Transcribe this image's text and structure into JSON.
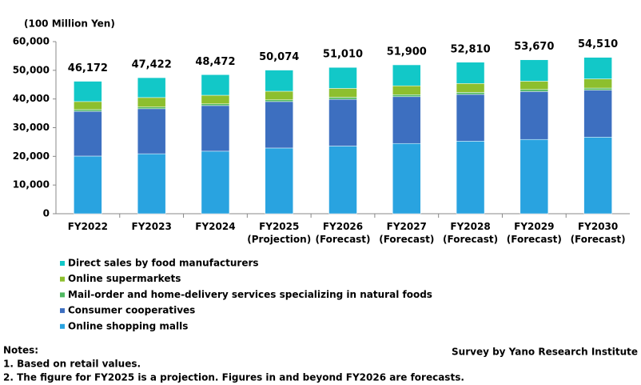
{
  "chart_data": {
    "type": "stacked_bar",
    "y_axis_label": "(100 Million Yen)",
    "categories": [
      "FY2022",
      "FY2023",
      "FY2024",
      "FY2025 (Projection)",
      "FY2026 (Forecast)",
      "FY2027 (Forecast)",
      "FY2028 (Forecast)",
      "FY2029 (Forecast)",
      "FY2030 (Forecast)"
    ],
    "series": [
      {
        "name": "Online shopping malls",
        "color": "#29a3e0",
        "values": [
          20100,
          20900,
          21800,
          22900,
          23600,
          24500,
          25300,
          25900,
          26700
        ]
      },
      {
        "name": "Consumer cooperatives",
        "color": "#3d6fc0",
        "values": [
          15600,
          15700,
          15900,
          16200,
          16300,
          16300,
          16300,
          16700,
          16400
        ]
      },
      {
        "name": "Mail-order and home-delivery services specializing in natural foods",
        "color": "#4fb860",
        "values": [
          600,
          600,
          600,
          600,
          700,
          700,
          700,
          700,
          700
        ]
      },
      {
        "name": "Online supermarkets",
        "color": "#8dbf2e",
        "values": [
          2800,
          3300,
          3000,
          3000,
          3100,
          3100,
          3100,
          2900,
          3200
        ]
      },
      {
        "name": "Direct sales by food manufacturers",
        "color": "#12c8c8",
        "values": [
          7072,
          6922,
          7172,
          7374,
          7310,
          7300,
          7410,
          7470,
          7510
        ]
      }
    ],
    "totals": [
      46172,
      47422,
      48472,
      50074,
      51010,
      51900,
      52810,
      53670,
      54510
    ],
    "total_labels": [
      "46,172",
      "47,422",
      "48,472",
      "50,074",
      "51,010",
      "51,900",
      "52,810",
      "53,670",
      "54,510"
    ],
    "ylim": [
      0,
      60000
    ],
    "yticks": [
      0,
      {
        "value": 10000,
        "label": "10,000"
      },
      {
        "value": 20000,
        "label": "20,000"
      },
      {
        "value": 30000,
        "label": "30,000"
      },
      {
        "value": 40000,
        "label": "40,000"
      },
      {
        "value": 50000,
        "label": "50,000"
      },
      {
        "value": 60000,
        "label": "60,000"
      }
    ],
    "grid": false,
    "notes_title": "Notes:",
    "notes": [
      "1. Based on retail values.",
      "2. The figure for FY2025 is a projection. Figures in and beyond FY2026 are forecasts."
    ],
    "source": "Survey by Yano Research Institute"
  }
}
